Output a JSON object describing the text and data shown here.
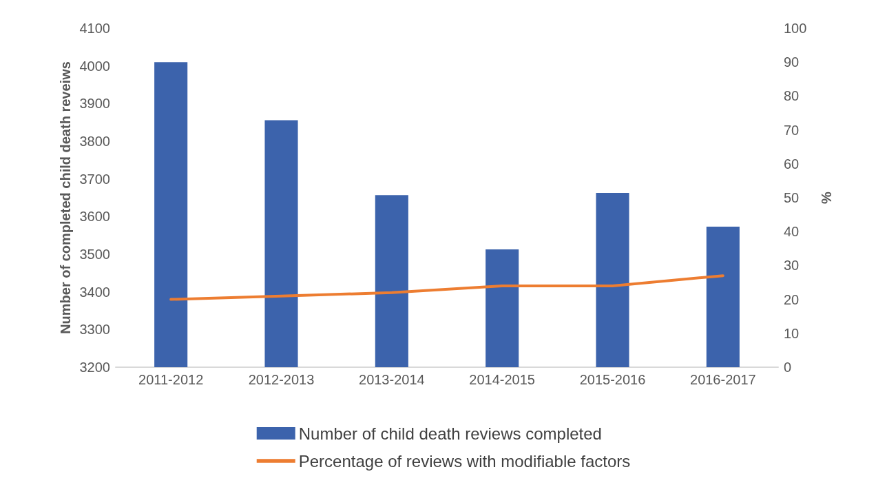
{
  "chart_data": {
    "type": "bar",
    "ylabel": "Number of completed child death reveiws",
    "y2label": "%",
    "categories": [
      "2011-2012",
      "2012-2013",
      "2013-2014",
      "2014-2015",
      "2015-2016",
      "2016-2017"
    ],
    "series": [
      {
        "name": "Number of child death reviews completed",
        "color": "#3c63ac",
        "values": [
          4010,
          3856,
          3657,
          3513,
          3663,
          3573
        ]
      },
      {
        "name": "Percentage of reviews with modifiable factors",
        "type": "line",
        "axis": "y2",
        "color": "#ed7d31",
        "marker": "none",
        "values": [
          20,
          21,
          22,
          24,
          24,
          27
        ]
      }
    ],
    "ylim": [
      3200,
      4100
    ],
    "yticks": [
      3200,
      3300,
      3400,
      3500,
      3600,
      3700,
      3800,
      3900,
      4000,
      4100
    ],
    "y2lim": [
      0,
      100
    ],
    "y2ticks": [
      0,
      10,
      20,
      30,
      40,
      50,
      60,
      70,
      80,
      90,
      100
    ],
    "grid": false,
    "legend": "bottom"
  }
}
